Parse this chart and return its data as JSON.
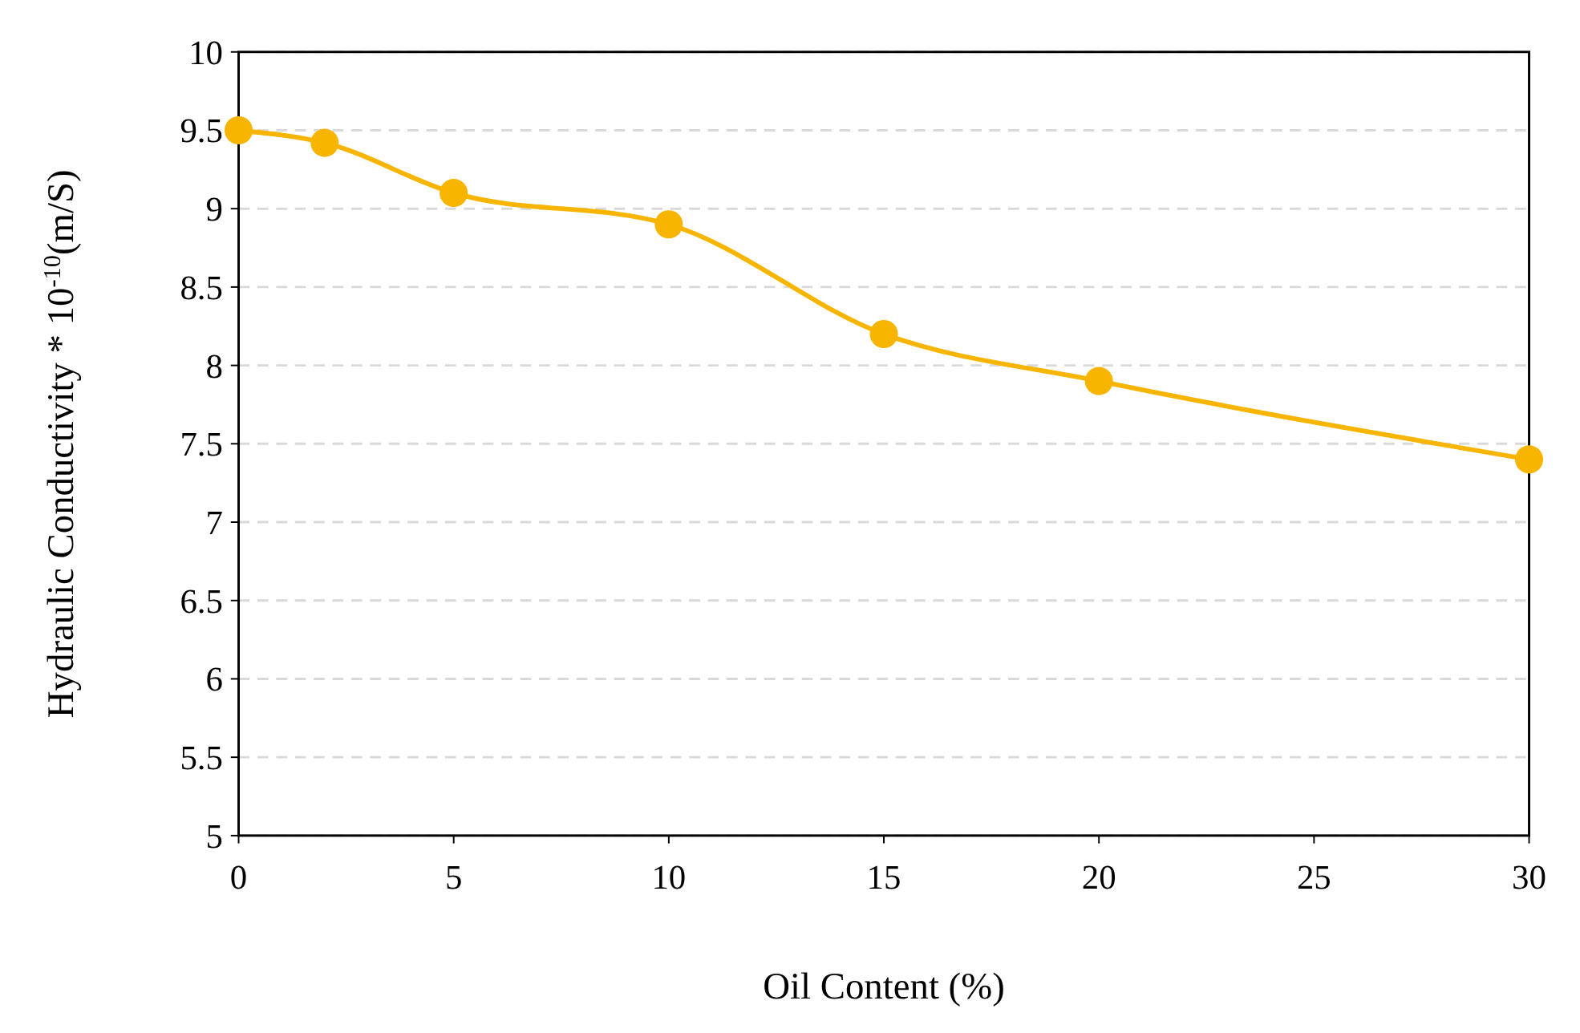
{
  "chart_data": {
    "type": "line",
    "xlabel": "Oil Content (%)",
    "ylabel": "Hydraulic Conductivity * 10$^{-10}$(m/S)",
    "x": [
      0,
      2,
      5,
      10,
      15,
      20,
      30
    ],
    "series": [
      {
        "color": "#f7b500",
        "values": [
          9.5,
          9.42,
          9.1,
          8.9,
          8.2,
          7.9,
          7.4
        ]
      }
    ],
    "xlim": [
      0,
      30
    ],
    "xticks": [
      0,
      5,
      10,
      15,
      20,
      25,
      30
    ],
    "ylim": [
      5,
      10
    ],
    "yticks": [
      5,
      5.5,
      6,
      6.5,
      7,
      7.5,
      8,
      8.5,
      9,
      9.5,
      10
    ],
    "grid": "y",
    "marker": "circle",
    "line_style": "solid"
  }
}
